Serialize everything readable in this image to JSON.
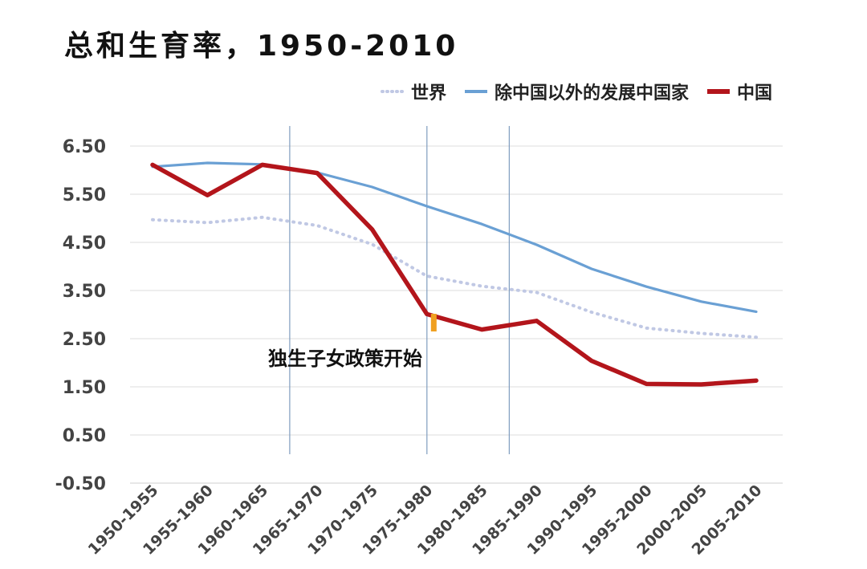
{
  "chart_data": {
    "type": "line",
    "title": "总和生育率，1950-2010",
    "categories": [
      "1950-1955",
      "1955-1960",
      "1960-1965",
      "1965-1970",
      "1970-1975",
      "1975-1980",
      "1980-1985",
      "1985-1990",
      "1990-1995",
      "1995-2000",
      "2000-2005",
      "2005-2010"
    ],
    "series": [
      {
        "name": "世界",
        "color": "#c0c8e4",
        "style": "dotted",
        "values": [
          4.97,
          4.91,
          5.02,
          4.85,
          4.46,
          3.8,
          3.59,
          3.46,
          3.05,
          2.72,
          2.61,
          2.53
        ]
      },
      {
        "name": "除中国以外的发展中国家",
        "color": "#6aa0d4",
        "style": "solid",
        "values": [
          6.07,
          6.15,
          6.12,
          5.95,
          5.65,
          5.25,
          4.88,
          4.45,
          3.95,
          3.58,
          3.27,
          3.06
        ]
      },
      {
        "name": "中国",
        "color": "#b3151b",
        "style": "solid-thick",
        "values": [
          6.11,
          5.48,
          6.11,
          5.94,
          4.77,
          3.01,
          2.69,
          2.87,
          2.04,
          1.56,
          1.55,
          1.63
        ]
      }
    ],
    "y_ticks": [
      "6.50",
      "5.50",
      "4.50",
      "3.50",
      "2.50",
      "1.50",
      "0.50",
      "-0.50"
    ],
    "ylim": [
      -0.5,
      6.5
    ],
    "vertical_markers_between": [
      3,
      5.5,
      7
    ],
    "annotation": {
      "text": "独生子女政策开始",
      "marker_color": "#f0a020"
    },
    "grid": true,
    "legend_position": "top-right"
  }
}
